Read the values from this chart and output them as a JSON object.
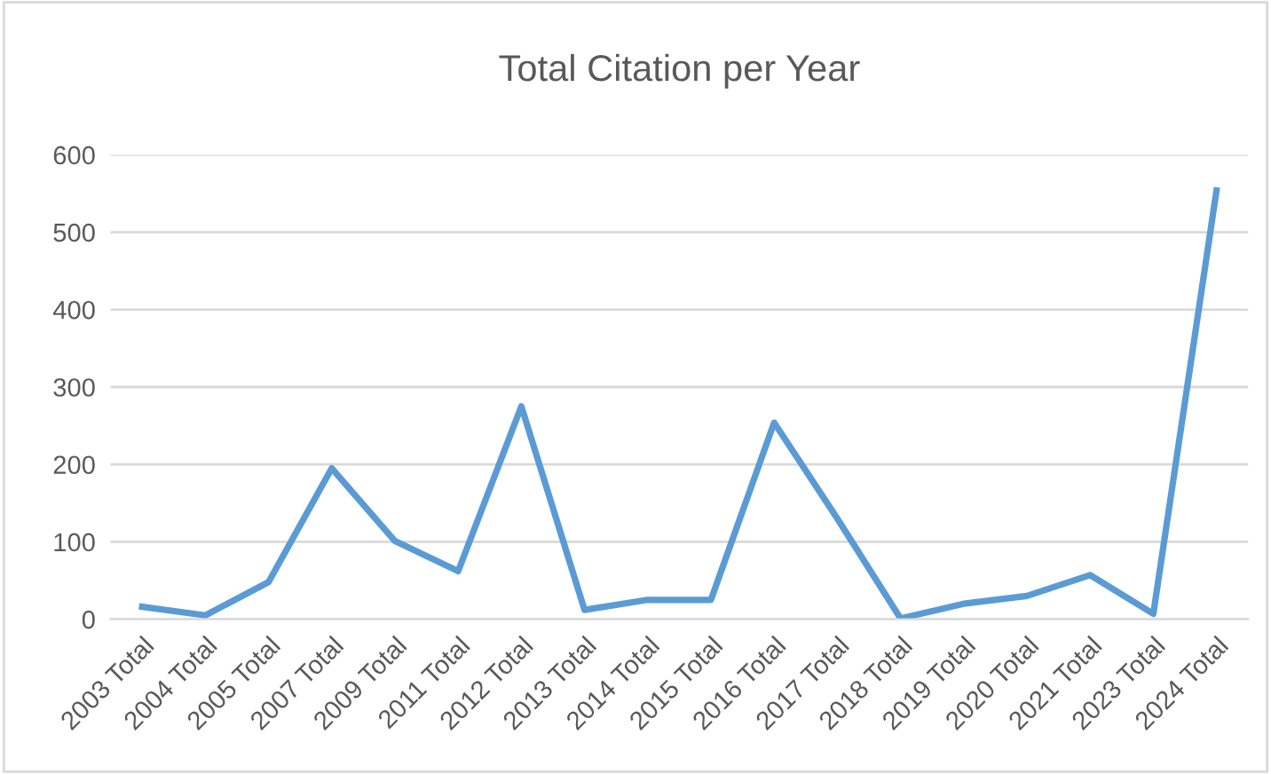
{
  "chart_data": {
    "type": "line",
    "title": "Total Citation per Year",
    "categories": [
      "2003 Total",
      "2004 Total",
      "2005 Total",
      "2007 Total",
      "2009 Total",
      "2011 Total",
      "2012 Total",
      "2013 Total",
      "2014 Total",
      "2015 Total",
      "2016 Total",
      "2017 Total",
      "2018 Total",
      "2019 Total",
      "2020 Total",
      "2021 Total",
      "2023 Total",
      "2024 Total"
    ],
    "series": [
      {
        "color": "#5b9bd5",
        "values": [
          16,
          5,
          48,
          195,
          101,
          62,
          275,
          12,
          25,
          25,
          254,
          130,
          1,
          20,
          30,
          57,
          7,
          554
        ]
      }
    ],
    "ylim": [
      0,
      600
    ],
    "yticks": [
      0,
      100,
      200,
      300,
      400,
      500,
      600
    ],
    "grid": "y",
    "marker": "none",
    "line_style": "solid",
    "legend": false
  }
}
